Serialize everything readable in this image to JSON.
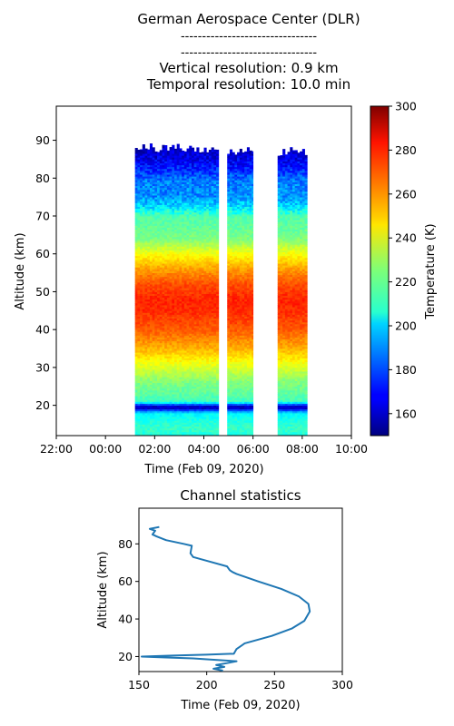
{
  "header": {
    "lines": [
      "German Aerospace Center (DLR)",
      "--------------------------------",
      "--------------------------------",
      "Vertical resolution: 0.9 km",
      "Temporal resolution: 10.0 min"
    ]
  },
  "chart_data": [
    {
      "type": "heatmap",
      "xlabel": "Time (Feb 09, 2020)",
      "ylabel": "Altitude (km)",
      "x_ticks": [
        "22:00",
        "00:00",
        "02:00",
        "04:00",
        "06:00",
        "08:00",
        "10:00"
      ],
      "x_range_hours": [
        -2,
        10
      ],
      "y_ticks": [
        20,
        30,
        40,
        50,
        60,
        70,
        80,
        90
      ],
      "ylim": [
        12,
        99
      ],
      "colorbar": {
        "label": "Temperature (K)",
        "ticks": [
          160,
          180,
          200,
          220,
          240,
          260,
          280,
          300
        ],
        "range": [
          150,
          300
        ],
        "colormap": "jet"
      },
      "data_blocks": [
        {
          "start_hour": 1.2,
          "end_hour": 4.6,
          "top_km": 88
        },
        {
          "start_hour": 4.95,
          "end_hour": 6.0,
          "top_km": 87
        },
        {
          "start_hour": 7.0,
          "end_hour": 8.2,
          "top_km": 87
        }
      ],
      "temperature_profile": {
        "altitude_km": [
          12,
          14,
          16,
          18,
          19.5,
          20,
          21,
          23,
          26,
          30,
          35,
          40,
          45,
          48,
          52,
          56,
          60,
          64,
          66,
          70,
          72,
          75,
          79,
          83,
          86,
          88
        ],
        "temperature_K": [
          210,
          215,
          210,
          205,
          152,
          170,
          215,
          220,
          225,
          238,
          255,
          268,
          275,
          276,
          270,
          258,
          243,
          225,
          222,
          218,
          205,
          190,
          188,
          172,
          163,
          160
        ]
      }
    },
    {
      "type": "line",
      "title": "Channel statistics",
      "xlabel": "Time (Feb 09, 2020)",
      "ylabel": "Altitude (km)",
      "xlim": [
        150,
        300
      ],
      "ylim": [
        12,
        99
      ],
      "x_ticks": [
        150,
        200,
        250,
        300
      ],
      "y_ticks": [
        20,
        40,
        60,
        80
      ],
      "color": "#1f77b4",
      "series": [
        {
          "x": [
            212,
            205,
            213,
            207,
            215,
            222,
            200,
            190,
            170,
            152,
            175,
            200,
            220,
            222,
            226,
            228,
            248,
            263,
            272,
            276,
            275,
            268,
            255,
            238,
            222,
            219,
            217,
            215,
            200,
            190,
            188,
            189,
            183,
            170,
            163,
            160,
            162,
            158,
            165
          ],
          "y": [
            12.5,
            13.5,
            14.5,
            15.5,
            16.5,
            17.5,
            18.5,
            19,
            19.5,
            20,
            20.5,
            21,
            21.5,
            24,
            26,
            27,
            31,
            35,
            39,
            44,
            48,
            52,
            56,
            60,
            64,
            65,
            66,
            68,
            71,
            73,
            75,
            79,
            80,
            82,
            84,
            85,
            87,
            88,
            89
          ]
        }
      ]
    }
  ]
}
